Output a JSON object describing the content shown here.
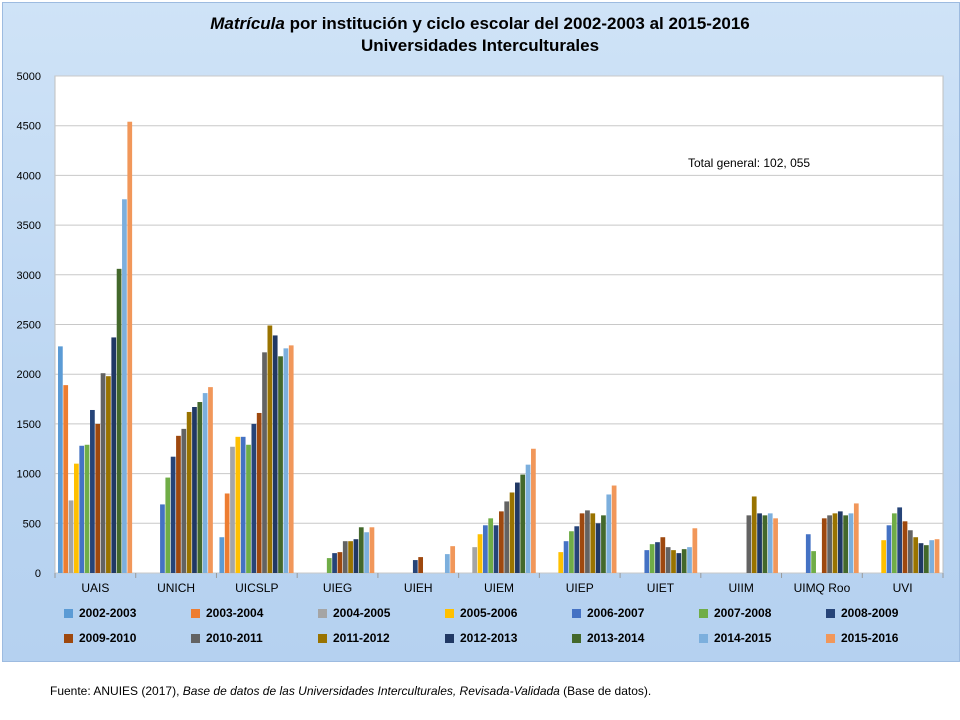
{
  "chart_data": {
    "type": "bar",
    "title_italic": "Matrícula",
    "title_rest": " por institución y ciclo escolar del  2002-2003 al  2015-2016",
    "subtitle": "Universidades Interculturales",
    "annotation": "Total general: 102, 055",
    "ylim": [
      0,
      5000
    ],
    "yticks": [
      "0",
      "500",
      "1000",
      "1500",
      "2000",
      "2500",
      "3000",
      "3500",
      "4000",
      "4500",
      "5000"
    ],
    "grid": true,
    "legend_position": "bottom",
    "categories": [
      "UAIS",
      "UNICH",
      "UICSLP",
      "UIEG",
      "UIEH",
      "UIEM",
      "UIEP",
      "UIET",
      "UIIM",
      "UIMQ Roo",
      "UVI"
    ],
    "series": [
      {
        "name": "2002-2003",
        "color": "#5b9bd5",
        "values": [
          2280,
          null,
          360,
          null,
          null,
          null,
          null,
          null,
          null,
          null,
          null
        ]
      },
      {
        "name": "2003-2004",
        "color": "#ed7d31",
        "values": [
          1890,
          null,
          800,
          null,
          null,
          null,
          null,
          null,
          null,
          null,
          null
        ]
      },
      {
        "name": "2004-2005",
        "color": "#a5a5a5",
        "values": [
          730,
          null,
          1270,
          null,
          null,
          260,
          null,
          null,
          null,
          null,
          null
        ]
      },
      {
        "name": "2005-2006",
        "color": "#ffc000",
        "values": [
          1100,
          null,
          1370,
          null,
          null,
          390,
          210,
          null,
          null,
          null,
          330
        ]
      },
      {
        "name": "2006-2007",
        "color": "#4472c4",
        "values": [
          1280,
          690,
          1370,
          null,
          null,
          480,
          320,
          230,
          null,
          390,
          480
        ]
      },
      {
        "name": "2007-2008",
        "color": "#70ad47",
        "values": [
          1290,
          960,
          1290,
          150,
          null,
          550,
          420,
          290,
          null,
          220,
          600
        ]
      },
      {
        "name": "2008-2009",
        "color": "#264478",
        "values": [
          1640,
          1170,
          1500,
          200,
          130,
          480,
          470,
          310,
          null,
          null,
          660
        ]
      },
      {
        "name": "2009-2010",
        "color": "#9e480e",
        "values": [
          1500,
          1380,
          1610,
          210,
          160,
          620,
          600,
          360,
          null,
          550,
          520
        ]
      },
      {
        "name": "2010-2011",
        "color": "#636363",
        "values": [
          2010,
          1450,
          2220,
          320,
          null,
          720,
          630,
          260,
          580,
          580,
          430
        ]
      },
      {
        "name": "2011-2012",
        "color": "#997300",
        "values": [
          1980,
          1620,
          2490,
          320,
          null,
          810,
          600,
          230,
          770,
          600,
          360
        ]
      },
      {
        "name": "2012-2013",
        "color": "#203864",
        "values": [
          2370,
          1670,
          2390,
          340,
          null,
          910,
          500,
          200,
          600,
          620,
          300
        ]
      },
      {
        "name": "2013-2014",
        "color": "#43682b",
        "values": [
          3060,
          1720,
          2180,
          460,
          null,
          990,
          580,
          240,
          580,
          580,
          280
        ]
      },
      {
        "name": "2014-2015",
        "color": "#7cafdd",
        "values": [
          3760,
          1810,
          2260,
          410,
          190,
          1090,
          790,
          260,
          600,
          600,
          330
        ]
      },
      {
        "name": "2015-2016",
        "color": "#f1975a",
        "values": [
          4540,
          1870,
          2290,
          460,
          270,
          1250,
          880,
          450,
          550,
          700,
          340
        ]
      }
    ]
  },
  "source_prefix": "Fuente: ANUIES (2017),   ",
  "source_italic": "Base de datos de las Universidades  Interculturales, Revisada-Validada",
  "source_suffix": "  (Base de datos)."
}
